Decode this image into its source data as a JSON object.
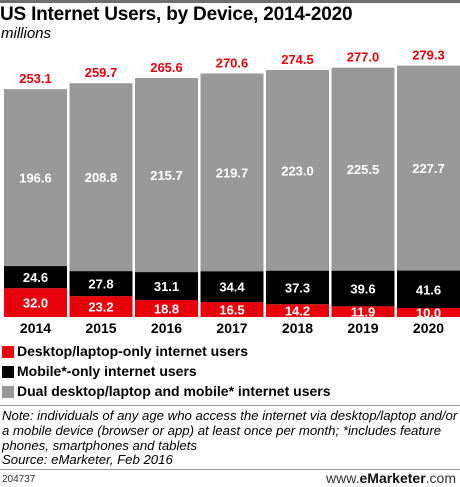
{
  "title": "US Internet Users, by Device, 2014-2020",
  "subtitle": "millions",
  "legend": [
    {
      "label": "Desktop/laptop-only internet users",
      "color": "#e8000b"
    },
    {
      "label": "Mobile*-only internet users",
      "color": "#000000"
    },
    {
      "label": "Dual desktop/laptop and mobile* internet users",
      "color": "#999999"
    }
  ],
  "note": "Note: individuals of any age who access the internet via desktop/laptop and/or a mobile device (browser or app) at least once per month; *includes feature phones, smartphones and tablets",
  "source": "Source: eMarketer, Feb 2016",
  "footer": {
    "id": "204737",
    "url_prefix": "www.",
    "url_brand": "eMarketer",
    "url_suffix": ".com"
  },
  "chart_data": {
    "type": "bar",
    "stacked": true,
    "categories": [
      "2014",
      "2015",
      "2016",
      "2017",
      "2018",
      "2019",
      "2020"
    ],
    "series": [
      {
        "name": "Desktop/laptop-only internet users",
        "color": "#e8000b",
        "label_color": "#ffffff",
        "values": [
          32.0,
          23.2,
          18.8,
          16.5,
          14.2,
          11.9,
          10.0
        ]
      },
      {
        "name": "Mobile*-only internet users",
        "color": "#000000",
        "label_color": "#ffffff",
        "values": [
          24.6,
          27.8,
          31.1,
          34.4,
          37.3,
          39.6,
          41.6
        ]
      },
      {
        "name": "Dual desktop/laptop and mobile* internet users",
        "color": "#999999",
        "label_color": "#ffffff",
        "values": [
          196.6,
          208.8,
          215.7,
          219.7,
          223.0,
          225.5,
          227.7
        ]
      }
    ],
    "totals": [
      253.1,
      259.7,
      265.6,
      270.6,
      274.5,
      277.0,
      279.3
    ],
    "total_label_color": "#e8000b",
    "grid": false
  }
}
